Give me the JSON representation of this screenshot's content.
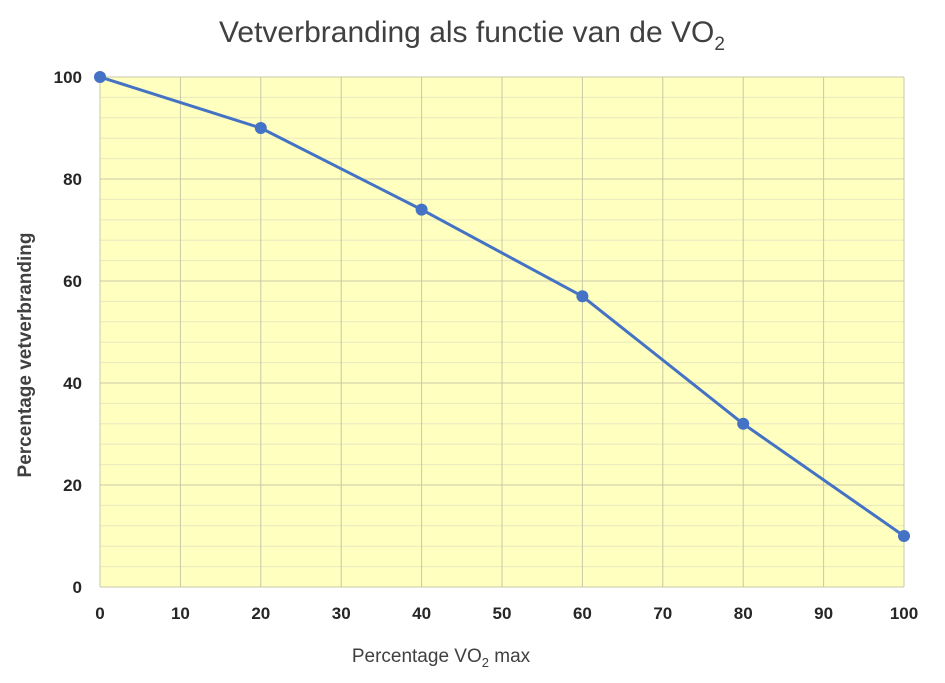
{
  "chart_data": {
    "type": "line",
    "title": "Vetverbranding als functie van de VO",
    "title_subscript": "2",
    "xlabel_prefix": "Percentage VO",
    "xlabel_subscript": "2",
    "xlabel_suffix": " max",
    "ylabel": "Percentage vetverbranding",
    "x": [
      0,
      20,
      40,
      60,
      80,
      100
    ],
    "series": [
      {
        "values": [
          100,
          90,
          74,
          57,
          32,
          10
        ]
      }
    ],
    "xlim": [
      0,
      100
    ],
    "ylim": [
      0,
      100
    ],
    "xticks": [
      "0",
      "10",
      "20",
      "30",
      "40",
      "50",
      "60",
      "70",
      "80",
      "90",
      "100"
    ],
    "yticks": [
      "0",
      "20",
      "40",
      "60",
      "80",
      "100"
    ],
    "grid": true,
    "colors": {
      "plot_background": "#FFFFBF",
      "line": "#4472C4",
      "major_grid": "#C8C8A8",
      "minor_grid": "#E8E8C0"
    }
  }
}
